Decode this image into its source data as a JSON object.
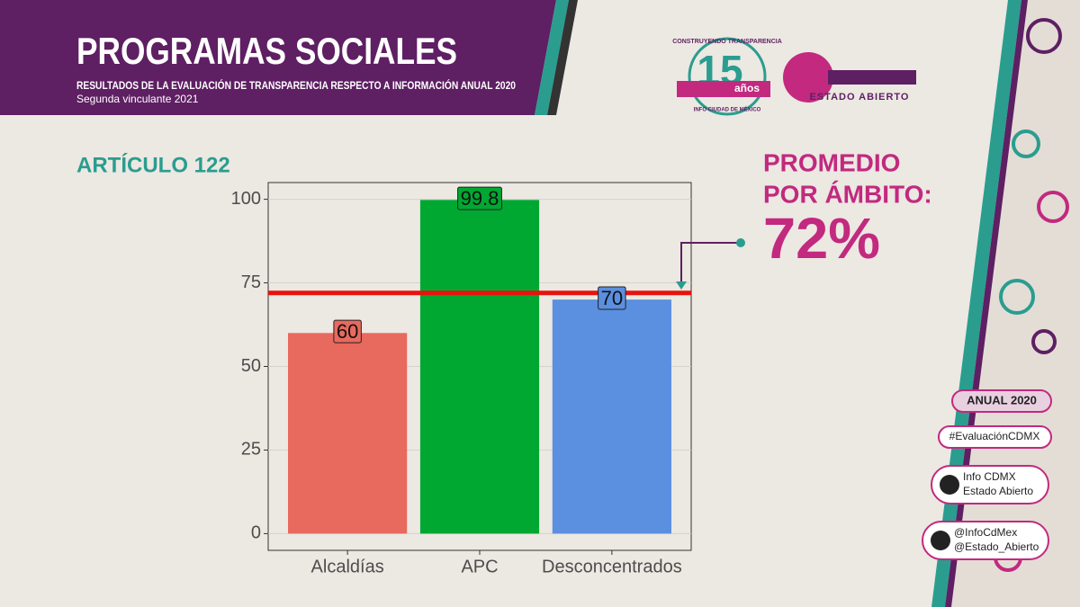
{
  "header": {
    "title": "PROGRAMAS SOCIALES",
    "subtitle": "RESULTADOS DE LA EVALUACIÓN DE TRANSPARENCIA RESPECTO A INFORMACIÓN ANUAL 2020",
    "note": "Segunda vinculante 2021"
  },
  "logos": {
    "anniversary": [
      "CONSTRUYENDO TRANSPARENCIA",
      "15",
      "años",
      "INFO CIUDAD DE MÉXICO"
    ],
    "estado_abierto": "ESTADO ABIERTO"
  },
  "chart_data": {
    "type": "bar",
    "section": "ARTÍCULO 122",
    "categories": [
      "Alcaldías",
      "APC",
      "Desconcentrados"
    ],
    "values": [
      60,
      99.8,
      70
    ],
    "colors": [
      "#e8695e",
      "#00a832",
      "#5b8fe0"
    ],
    "ylim": [
      -5,
      105
    ],
    "yticks": [
      0,
      25,
      50,
      75,
      100
    ],
    "grid": true,
    "average": {
      "title": [
        "PROMEDIO",
        "POR ÁMBITO:"
      ],
      "value": 72,
      "label": "72%",
      "color": "#e8120c"
    }
  },
  "sidebar": {
    "badges": [
      "ANUAL 2020",
      "#EvaluaciónCDMX"
    ],
    "facebook": [
      "Info CDMX",
      "Estado Abierto"
    ],
    "twitter": [
      "@InfoCdMex",
      "@Estado_Abierto"
    ]
  }
}
